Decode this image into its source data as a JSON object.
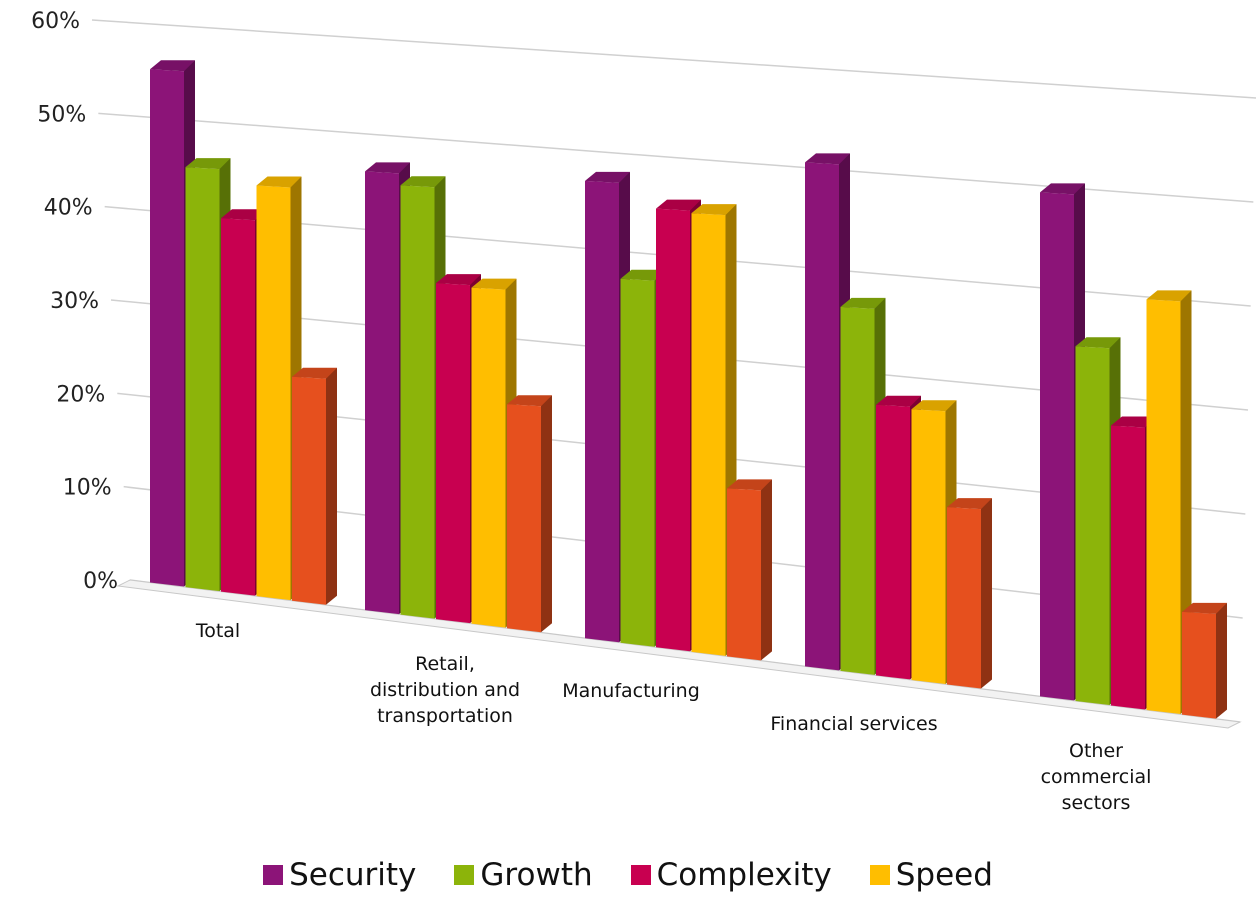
{
  "chart_data": {
    "type": "bar",
    "style": "3d-clustered-column",
    "categories": [
      [
        "Total"
      ],
      [
        "Retail,",
        "distribution and",
        "transportation"
      ],
      [
        "Manufacturing"
      ],
      [
        "Financial services"
      ],
      [
        "Other",
        "commercial",
        "sectors"
      ]
    ],
    "series": [
      {
        "name": "Security",
        "color": "#8c1478",
        "values": [
          0.55,
          0.47,
          0.49,
          0.54,
          0.54
        ]
      },
      {
        "name": "Growth",
        "color": "#8cb40a",
        "values": [
          0.45,
          0.46,
          0.39,
          0.39,
          0.38
        ]
      },
      {
        "name": "Complexity",
        "color": "#c80050",
        "values": [
          0.4,
          0.36,
          0.47,
          0.29,
          0.3
        ]
      },
      {
        "name": "Speed",
        "color": "#ffbe00",
        "values": [
          0.44,
          0.36,
          0.47,
          0.29,
          0.44
        ]
      },
      {
        "name": "",
        "color": "#e6501e",
        "values": [
          0.24,
          0.24,
          0.18,
          0.19,
          0.11
        ]
      }
    ],
    "ylim": [
      0,
      0.6
    ],
    "yticks": [
      "0%",
      "10%",
      "20%",
      "30%",
      "40%",
      "50%",
      "60%"
    ],
    "grid": true,
    "legend_position": "bottom"
  },
  "legend": [
    {
      "name": "Security",
      "color": "#8c1478"
    },
    {
      "name": "Growth",
      "color": "#8cb40a"
    },
    {
      "name": "Complexity",
      "color": "#c80050"
    },
    {
      "name": "Speed",
      "color": "#ffbe00"
    }
  ]
}
